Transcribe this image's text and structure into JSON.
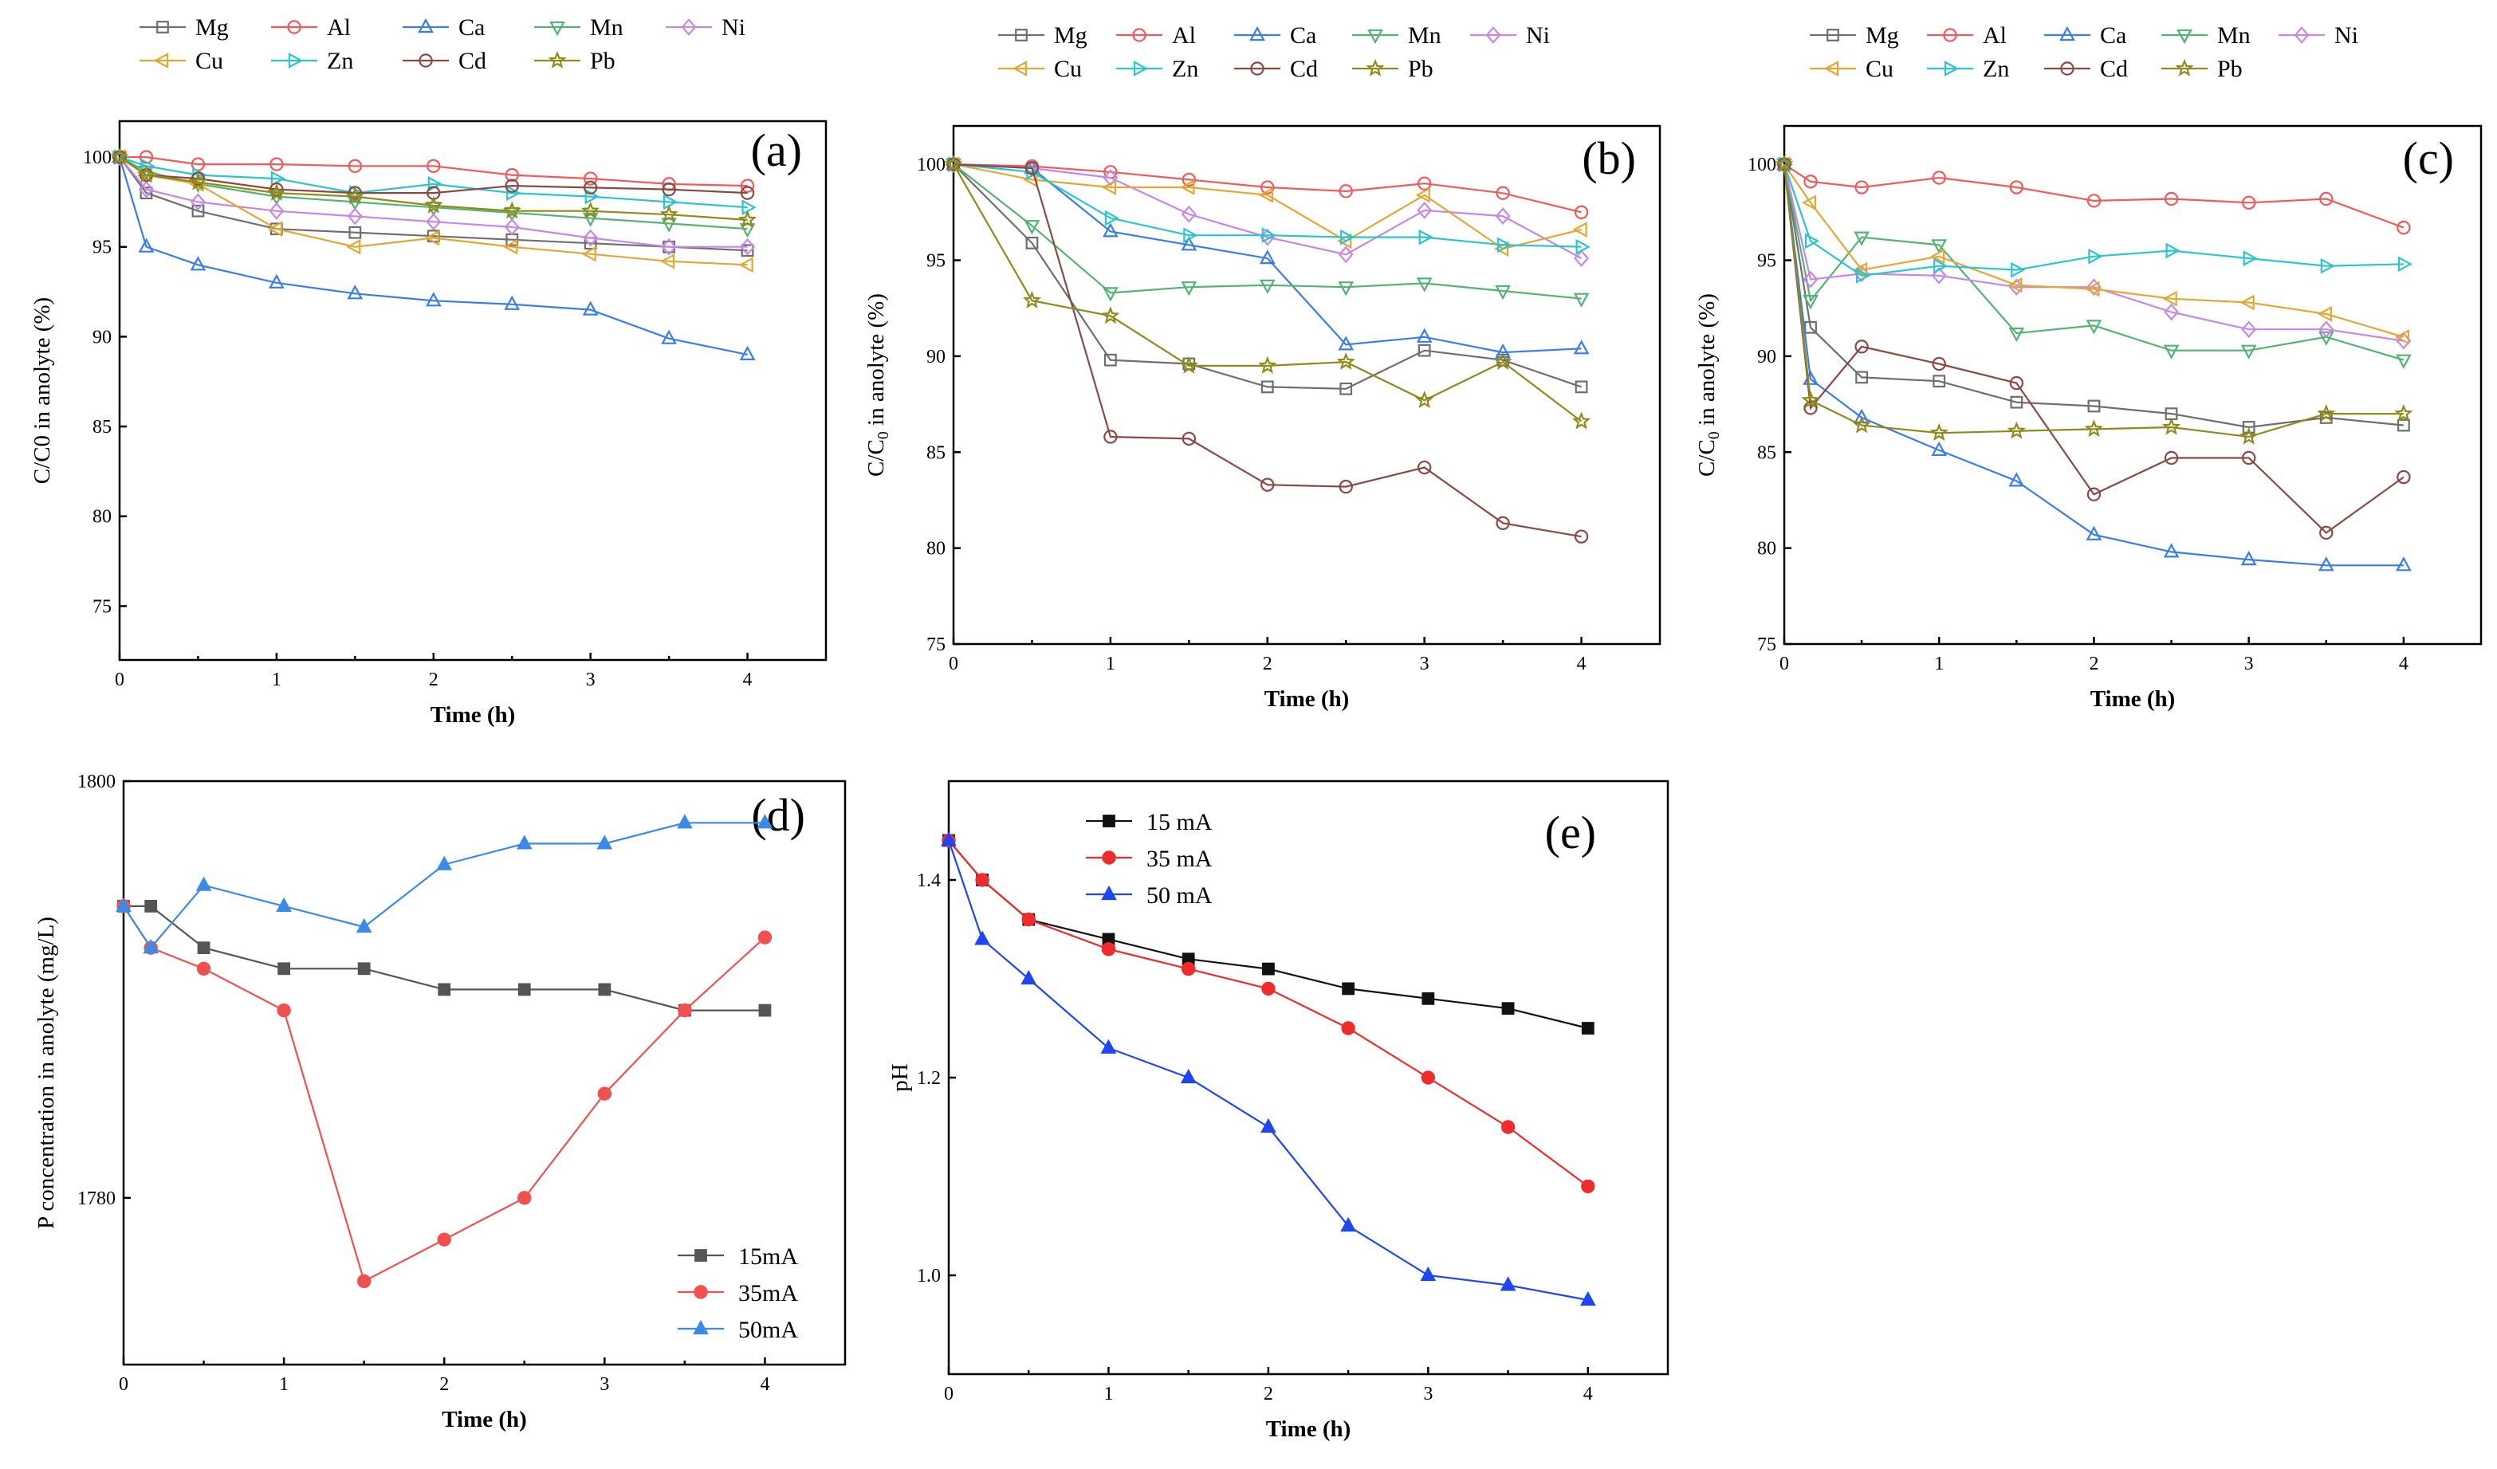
{
  "figure": {
    "metal_colors": {
      "Mg": "#6e6e6e",
      "Al": "#f15a5a",
      "Ca": "#3a7de8",
      "Mn": "#53b373",
      "Ni": "#c787e8",
      "Cu": "#e4a733",
      "Zn": "#2cc4cf",
      "Cd": "#8a4a43",
      "Pb": "#8f8a1a"
    },
    "current_colors": {
      "15 mA": "#111111",
      "35 mA": "#ef2b2b",
      "50 mA": "#1f46ef",
      "15mA": "#555555",
      "35mA": "#f05050",
      "50mA": "#3b8ae6"
    }
  },
  "chart_data": [
    {
      "id": "a",
      "type": "line",
      "panel_label": "(a)",
      "xlabel": "Time (h)",
      "ylabel": "C/C0 in anolyte (%)",
      "xlim": [
        0,
        4.5
      ],
      "ylim": [
        72,
        102
      ],
      "xticks": [
        "0",
        "1",
        "2",
        "3",
        "4"
      ],
      "yticks": [
        "75",
        "80",
        "85",
        "90",
        "95",
        "100"
      ],
      "x": [
        0,
        0.17,
        0.5,
        1,
        1.5,
        2,
        2.5,
        3,
        3.5,
        4
      ],
      "series": [
        {
          "name": "Mg",
          "values": [
            100,
            98.0,
            97.0,
            96.0,
            95.8,
            95.6,
            95.4,
            95.2,
            95.0,
            94.8
          ]
        },
        {
          "name": "Al",
          "values": [
            100,
            100.0,
            99.6,
            99.6,
            99.5,
            99.5,
            99.0,
            98.8,
            98.5,
            98.4
          ]
        },
        {
          "name": "Ca",
          "values": [
            100,
            95.0,
            94.0,
            93.0,
            92.4,
            92.0,
            91.8,
            91.5,
            89.9,
            89.0
          ]
        },
        {
          "name": "Mn",
          "values": [
            100,
            99.2,
            98.5,
            97.8,
            97.5,
            97.2,
            96.9,
            96.6,
            96.3,
            96.0
          ]
        },
        {
          "name": "Ni",
          "values": [
            100,
            98.2,
            97.5,
            97.0,
            96.7,
            96.4,
            96.1,
            95.5,
            95.0,
            95.0
          ]
        },
        {
          "name": "Cu",
          "values": [
            100,
            99.0,
            98.5,
            96.0,
            95.0,
            95.5,
            95.0,
            94.6,
            94.2,
            94.0
          ]
        },
        {
          "name": "Zn",
          "values": [
            100,
            99.5,
            99.0,
            98.8,
            98.0,
            98.5,
            98.0,
            97.8,
            97.5,
            97.2
          ]
        },
        {
          "name": "Cd",
          "values": [
            100,
            99.0,
            98.8,
            98.2,
            98.0,
            98.0,
            98.4,
            98.3,
            98.2,
            98.0
          ]
        },
        {
          "name": "Pb",
          "values": [
            100,
            99.0,
            98.6,
            98.0,
            97.8,
            97.3,
            97.0,
            97.0,
            96.8,
            96.5
          ]
        }
      ]
    },
    {
      "id": "b",
      "type": "line",
      "panel_label": "(b)",
      "xlabel": "Time (h)",
      "ylabel": "C/C0 in anolyte (%)",
      "xlim": [
        0,
        4.5
      ],
      "ylim": [
        75,
        102
      ],
      "xticks": [
        "0",
        "1",
        "2",
        "3",
        "4"
      ],
      "yticks": [
        "75",
        "80",
        "85",
        "90",
        "95",
        "100"
      ],
      "x": [
        0,
        0.5,
        1,
        1.5,
        2,
        2.5,
        3,
        3.5,
        4
      ],
      "series": [
        {
          "name": "Mg",
          "values": [
            100,
            95.9,
            89.8,
            89.6,
            88.4,
            88.3,
            90.3,
            89.8,
            88.4
          ]
        },
        {
          "name": "Al",
          "values": [
            100,
            99.9,
            99.6,
            99.2,
            98.8,
            98.6,
            99.0,
            98.5,
            97.5
          ]
        },
        {
          "name": "Ca",
          "values": [
            100,
            99.8,
            96.5,
            95.8,
            95.1,
            90.6,
            91.0,
            90.2,
            90.4
          ]
        },
        {
          "name": "Mn",
          "values": [
            100,
            96.8,
            93.3,
            93.6,
            93.7,
            93.6,
            93.8,
            93.4,
            93.0
          ]
        },
        {
          "name": "Ni",
          "values": [
            100,
            99.8,
            99.3,
            97.4,
            96.2,
            95.3,
            97.6,
            97.3,
            95.1
          ]
        },
        {
          "name": "Cu",
          "values": [
            100,
            99.2,
            98.8,
            98.8,
            98.4,
            96.0,
            98.4,
            95.6,
            96.6
          ]
        },
        {
          "name": "Zn",
          "values": [
            100,
            99.6,
            97.2,
            96.3,
            96.3,
            96.2,
            96.2,
            95.8,
            95.7
          ]
        },
        {
          "name": "Cd",
          "values": [
            100,
            99.8,
            85.8,
            85.7,
            83.3,
            83.2,
            84.2,
            81.3,
            80.6
          ]
        },
        {
          "name": "Pb",
          "values": [
            100,
            92.9,
            92.1,
            89.5,
            89.5,
            89.7,
            87.7,
            89.7,
            86.6
          ]
        }
      ]
    },
    {
      "id": "c",
      "type": "line",
      "panel_label": "(c)",
      "xlabel": "Time (h)",
      "ylabel": "C/C0 in anolyte (%)",
      "xlim": [
        0,
        4.5
      ],
      "ylim": [
        75,
        102
      ],
      "xticks": [
        "0",
        "1",
        "2",
        "3",
        "4"
      ],
      "yticks": [
        "75",
        "80",
        "85",
        "90",
        "95",
        "100"
      ],
      "x": [
        0,
        0.17,
        0.5,
        1,
        1.5,
        2,
        2.5,
        3,
        3.5,
        4
      ],
      "series": [
        {
          "name": "Mg",
          "values": [
            100,
            91.5,
            88.9,
            88.7,
            87.6,
            87.4,
            87.0,
            86.3,
            86.8,
            86.4
          ]
        },
        {
          "name": "Al",
          "values": [
            100,
            99.1,
            98.8,
            99.3,
            98.8,
            98.1,
            98.2,
            98.0,
            98.2,
            96.7
          ]
        },
        {
          "name": "Ca",
          "values": [
            100,
            88.8,
            86.8,
            85.1,
            83.5,
            80.7,
            79.8,
            79.4,
            79.1,
            79.1
          ]
        },
        {
          "name": "Mn",
          "values": [
            100,
            92.9,
            96.2,
            95.8,
            91.2,
            91.6,
            90.3,
            90.3,
            91.0,
            89.8
          ]
        },
        {
          "name": "Ni",
          "values": [
            100,
            94.0,
            94.3,
            94.2,
            93.6,
            93.6,
            92.3,
            91.4,
            91.4,
            90.8
          ]
        },
        {
          "name": "Cu",
          "values": [
            100,
            98.0,
            94.5,
            95.2,
            93.7,
            93.5,
            93.0,
            92.8,
            92.2,
            91.0
          ]
        },
        {
          "name": "Zn",
          "values": [
            100,
            96.0,
            94.2,
            94.7,
            94.5,
            95.2,
            95.5,
            95.1,
            94.7,
            94.8
          ]
        },
        {
          "name": "Cd",
          "values": [
            100,
            87.3,
            90.5,
            89.6,
            88.6,
            82.8,
            84.7,
            84.7,
            80.8,
            83.7
          ]
        },
        {
          "name": "Pb",
          "values": [
            100,
            87.7,
            86.4,
            86.0,
            86.1,
            86.2,
            86.3,
            85.8,
            87.0,
            87.0
          ]
        }
      ]
    },
    {
      "id": "d",
      "type": "line",
      "panel_label": "(d)",
      "xlabel": "Time (h)",
      "ylabel": "P concentration in anolyte (mg/L)",
      "xlim": [
        0,
        4.5
      ],
      "ylim": [
        1772,
        1800
      ],
      "xticks": [
        "0",
        "1",
        "2",
        "3",
        "4"
      ],
      "yticks": [
        "1780",
        "1800"
      ],
      "x": [
        0,
        0.17,
        0.5,
        1,
        1.5,
        2,
        2.5,
        3,
        3.5,
        4
      ],
      "legend": [
        "15mA",
        "35mA",
        "50mA"
      ],
      "series": [
        {
          "name": "15mA",
          "values": [
            1794,
            1794,
            1792,
            1791,
            1791,
            1790,
            1790,
            1790,
            1789,
            1789
          ]
        },
        {
          "name": "35mA",
          "values": [
            1794,
            1792,
            1791,
            1789,
            1776,
            1778,
            1780,
            1785,
            1789,
            1792.5
          ]
        },
        {
          "name": "50mA",
          "values": [
            1794,
            1792,
            1795,
            1794,
            1793,
            1796,
            1797,
            1797,
            1798,
            1798
          ]
        }
      ]
    },
    {
      "id": "e",
      "type": "line",
      "panel_label": "(e)",
      "xlabel": "Time (h)",
      "ylabel": "pH",
      "xlim": [
        0,
        4.5
      ],
      "ylim": [
        0.9,
        1.5
      ],
      "xticks": [
        "0",
        "1",
        "2",
        "3",
        "4"
      ],
      "yticks": [
        "1.0",
        "1.2",
        "1.4"
      ],
      "x": [
        0,
        0.21,
        0.5,
        1,
        1.5,
        2,
        2.5,
        3,
        3.5,
        4
      ],
      "legend": [
        "15 mA",
        "35 mA",
        "50 mA"
      ],
      "series": [
        {
          "name": "15 mA",
          "values": [
            1.44,
            1.4,
            1.36,
            1.34,
            1.32,
            1.31,
            1.29,
            1.28,
            1.27,
            1.25
          ]
        },
        {
          "name": "35 mA",
          "values": [
            1.44,
            1.4,
            1.36,
            1.33,
            1.31,
            1.29,
            1.25,
            1.2,
            1.15,
            1.09
          ]
        },
        {
          "name": "50 mA",
          "values": [
            1.44,
            1.34,
            1.3,
            1.23,
            1.2,
            1.15,
            1.05,
            1.0,
            0.99,
            0.975
          ]
        }
      ]
    }
  ]
}
